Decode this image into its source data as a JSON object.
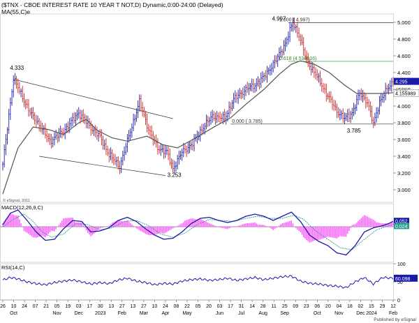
{
  "header": {
    "title": "($TNX - CBOE INTEREST RATE 10 YEAR T NOT,D) Dynamic,0:00-24:00 (Delayed)",
    "ma_label": "MA(55,C)e"
  },
  "footer": {
    "published": "Published by eSignal",
    "copyright": "© eSignal, 2011"
  },
  "colors": {
    "bar_up": "#1a1aa8",
    "bar_down": "#cc2222",
    "ma": "#555555",
    "macd": "#1a1aa8",
    "signal": "#2a9d8f",
    "hist": "#ff66ff",
    "rsi": "#1a1aa8",
    "fib_green": "#2a8a2a",
    "tag_bg": "#1a1aa8"
  },
  "chart_data": [
    {
      "type": "line",
      "title": "$TNX price (daily OHLC bars) with MA(55)",
      "y_ticks": [
        "5.000",
        "4.800",
        "4.600",
        "4.400",
        "4.200",
        "4.000",
        "3.800",
        "3.600",
        "3.400",
        "3.200",
        "3.000"
      ],
      "ylim": [
        2.85,
        5.1
      ],
      "price_path": [
        [
          0,
          3.3
        ],
        [
          7,
          4.333
        ],
        [
          18,
          3.92
        ],
        [
          24,
          3.78
        ],
        [
          31,
          3.58
        ],
        [
          40,
          3.7
        ],
        [
          50,
          3.92
        ],
        [
          58,
          3.74
        ],
        [
          64,
          3.63
        ],
        [
          70,
          3.42
        ],
        [
          77,
          3.28
        ],
        [
          84,
          3.7
        ],
        [
          90,
          4.05
        ],
        [
          96,
          3.72
        ],
        [
          102,
          3.5
        ],
        [
          108,
          3.45
        ],
        [
          112,
          3.253
        ],
        [
          118,
          3.45
        ],
        [
          125,
          3.55
        ],
        [
          132,
          3.75
        ],
        [
          138,
          3.88
        ],
        [
          146,
          3.85
        ],
        [
          152,
          4.08
        ],
        [
          160,
          4.2
        ],
        [
          166,
          4.25
        ],
        [
          172,
          4.35
        ],
        [
          180,
          4.55
        ],
        [
          186,
          4.75
        ],
        [
          191,
          4.997
        ],
        [
          195,
          4.85
        ],
        [
          200,
          4.55
        ],
        [
          207,
          4.35
        ],
        [
          213,
          4.15
        ],
        [
          220,
          3.94
        ],
        [
          225,
          3.85
        ],
        [
          230,
          3.92
        ],
        [
          235,
          4.15
        ],
        [
          240,
          4.05
        ],
        [
          244,
          3.785
        ],
        [
          248,
          4.05
        ],
        [
          253,
          4.2
        ],
        [
          257,
          4.3
        ]
      ],
      "ma_path": [
        [
          0,
          2.95
        ],
        [
          10,
          3.5
        ],
        [
          20,
          3.75
        ],
        [
          30,
          3.72
        ],
        [
          40,
          3.66
        ],
        [
          50,
          3.8
        ],
        [
          55,
          3.84
        ],
        [
          62,
          3.71
        ],
        [
          72,
          3.62
        ],
        [
          82,
          3.58
        ],
        [
          95,
          3.64
        ],
        [
          105,
          3.54
        ],
        [
          115,
          3.5
        ],
        [
          125,
          3.6
        ],
        [
          140,
          3.76
        ],
        [
          150,
          3.86
        ],
        [
          160,
          4.02
        ],
        [
          172,
          4.2
        ],
        [
          182,
          4.38
        ],
        [
          190,
          4.5
        ],
        [
          196,
          4.54
        ],
        [
          205,
          4.5
        ],
        [
          215,
          4.4
        ],
        [
          225,
          4.25
        ],
        [
          233,
          4.15
        ],
        [
          240,
          4.15
        ],
        [
          250,
          4.15
        ],
        [
          257,
          4.16
        ]
      ],
      "labels": [
        "4.333",
        "3.253",
        "4.997",
        "3.785"
      ],
      "fib_levels": [
        {
          "label": "1.000 ( 4.997)",
          "value": 4.997
        },
        {
          "label": "0.618 (4.534016)",
          "value": 4.534
        },
        {
          "label": "0.000 ( 3.785)",
          "value": 3.785
        }
      ],
      "last_price_tags": [
        "4.295",
        "4.155989",
        "4.200"
      ]
    },
    {
      "type": "line",
      "title": "MACD(12,26,9,C)",
      "series": [
        {
          "name": "MACD",
          "points": [
            [
              0,
              0.02
            ],
            [
              5,
              0.13
            ],
            [
              10,
              0.16
            ],
            [
              16,
              0.06
            ],
            [
              22,
              -0.05
            ],
            [
              28,
              -0.13
            ],
            [
              34,
              -0.12
            ],
            [
              40,
              -0.02
            ],
            [
              46,
              0.06
            ],
            [
              52,
              0.05
            ],
            [
              58,
              -0.05
            ],
            [
              64,
              -0.04
            ],
            [
              70,
              -0.01
            ],
            [
              76,
              0.06
            ],
            [
              82,
              0.09
            ],
            [
              88,
              0.05
            ],
            [
              94,
              -0.02
            ],
            [
              100,
              -0.08
            ],
            [
              106,
              -0.12
            ],
            [
              112,
              -0.11
            ],
            [
              118,
              -0.05
            ],
            [
              124,
              0.03
            ],
            [
              130,
              0.08
            ],
            [
              136,
              0.09
            ],
            [
              142,
              0.06
            ],
            [
              148,
              0.04
            ],
            [
              154,
              0.06
            ],
            [
              160,
              0.1
            ],
            [
              166,
              0.12
            ],
            [
              172,
              0.1
            ],
            [
              178,
              0.06
            ],
            [
              184,
              0.1
            ],
            [
              190,
              0.14
            ],
            [
              196,
              0.05
            ],
            [
              202,
              -0.08
            ],
            [
              208,
              -0.14
            ],
            [
              214,
              -0.18
            ],
            [
              220,
              -0.25
            ],
            [
              226,
              -0.27
            ],
            [
              232,
              -0.18
            ],
            [
              238,
              -0.05
            ],
            [
              244,
              -0.01
            ],
            [
              250,
              0.01
            ],
            [
              254,
              0.03
            ],
            [
              257,
              0.052
            ]
          ]
        },
        {
          "name": "Signal",
          "points": [
            [
              0,
              0.0
            ],
            [
              8,
              0.08
            ],
            [
              14,
              0.12
            ],
            [
              20,
              0.05
            ],
            [
              26,
              -0.05
            ],
            [
              32,
              -0.1
            ],
            [
              40,
              -0.07
            ],
            [
              48,
              0.03
            ],
            [
              56,
              0.02
            ],
            [
              64,
              -0.03
            ],
            [
              72,
              -0.01
            ],
            [
              80,
              0.05
            ],
            [
              88,
              0.06
            ],
            [
              96,
              0.01
            ],
            [
              104,
              -0.07
            ],
            [
              112,
              -0.1
            ],
            [
              120,
              -0.06
            ],
            [
              128,
              0.02
            ],
            [
              136,
              0.07
            ],
            [
              144,
              0.06
            ],
            [
              152,
              0.05
            ],
            [
              160,
              0.08
            ],
            [
              168,
              0.1
            ],
            [
              176,
              0.08
            ],
            [
              184,
              0.08
            ],
            [
              192,
              0.11
            ],
            [
              198,
              0.07
            ],
            [
              206,
              -0.04
            ],
            [
              214,
              -0.12
            ],
            [
              222,
              -0.2
            ],
            [
              230,
              -0.22
            ],
            [
              238,
              -0.12
            ],
            [
              246,
              -0.03
            ],
            [
              252,
              0.0
            ],
            [
              257,
              0.024
            ]
          ]
        }
      ],
      "zero_line": 0,
      "values_shown": [
        "0.052",
        "0.024"
      ]
    },
    {
      "type": "line",
      "title": "RSI(14,C)",
      "ylim": [
        0,
        100
      ],
      "y_ticks": [
        "100",
        "50",
        "0"
      ],
      "series": [
        {
          "name": "RSI",
          "points": [
            [
              0,
              55
            ],
            [
              5,
              62
            ],
            [
              10,
              58
            ],
            [
              16,
              50
            ],
            [
              22,
              45
            ],
            [
              28,
              42
            ],
            [
              34,
              48
            ],
            [
              40,
              52
            ],
            [
              46,
              55
            ],
            [
              52,
              50
            ],
            [
              58,
              44
            ],
            [
              64,
              48
            ],
            [
              70,
              45
            ],
            [
              76,
              55
            ],
            [
              82,
              60
            ],
            [
              88,
              52
            ],
            [
              94,
              48
            ],
            [
              100,
              42
            ],
            [
              106,
              46
            ],
            [
              112,
              44
            ],
            [
              118,
              52
            ],
            [
              124,
              56
            ],
            [
              130,
              58
            ],
            [
              136,
              54
            ],
            [
              142,
              56
            ],
            [
              148,
              60
            ],
            [
              154,
              54
            ],
            [
              160,
              58
            ],
            [
              166,
              62
            ],
            [
              172,
              56
            ],
            [
              178,
              60
            ],
            [
              184,
              64
            ],
            [
              190,
              66
            ],
            [
              196,
              52
            ],
            [
              202,
              46
            ],
            [
              208,
              44
            ],
            [
              214,
              40
            ],
            [
              220,
              38
            ],
            [
              226,
              34
            ],
            [
              232,
              50
            ],
            [
              238,
              62
            ],
            [
              244,
              44
            ],
            [
              250,
              62
            ],
            [
              257,
              60.098
            ]
          ]
        }
      ],
      "value_shown": "60.098"
    }
  ],
  "x_axis": {
    "ticks": [
      "26",
      "10",
      "24",
      "07",
      "21",
      "05",
      "19",
      "03",
      "17",
      "30",
      "13",
      "27",
      "13",
      "27",
      "10",
      "24",
      "08",
      "22",
      "05",
      "20",
      "03",
      "17",
      "31",
      "14",
      "28",
      "11",
      "25",
      "09",
      "23",
      "06",
      "20",
      "04",
      "18",
      "02",
      "15",
      "29",
      "12"
    ],
    "months": [
      {
        "label": "Oct",
        "tick": 1
      },
      {
        "label": "Nov",
        "tick": 5
      },
      {
        "label": "Dec",
        "tick": 7
      },
      {
        "label": "2023",
        "tick": 9
      },
      {
        "label": "Feb",
        "tick": 11
      },
      {
        "label": "Mar",
        "tick": 13
      },
      {
        "label": "Apr",
        "tick": 15
      },
      {
        "label": "May",
        "tick": 17
      },
      {
        "label": "Jun",
        "tick": 20
      },
      {
        "label": "Jul",
        "tick": 22
      },
      {
        "label": "Aug",
        "tick": 24
      },
      {
        "label": "Sep",
        "tick": 26
      },
      {
        "label": "Oct",
        "tick": 29
      },
      {
        "label": "Nov",
        "tick": 31
      },
      {
        "label": "Dec",
        "tick": 33
      },
      {
        "label": "2024",
        "tick": 34
      },
      {
        "label": "Feb",
        "tick": 36
      }
    ]
  }
}
